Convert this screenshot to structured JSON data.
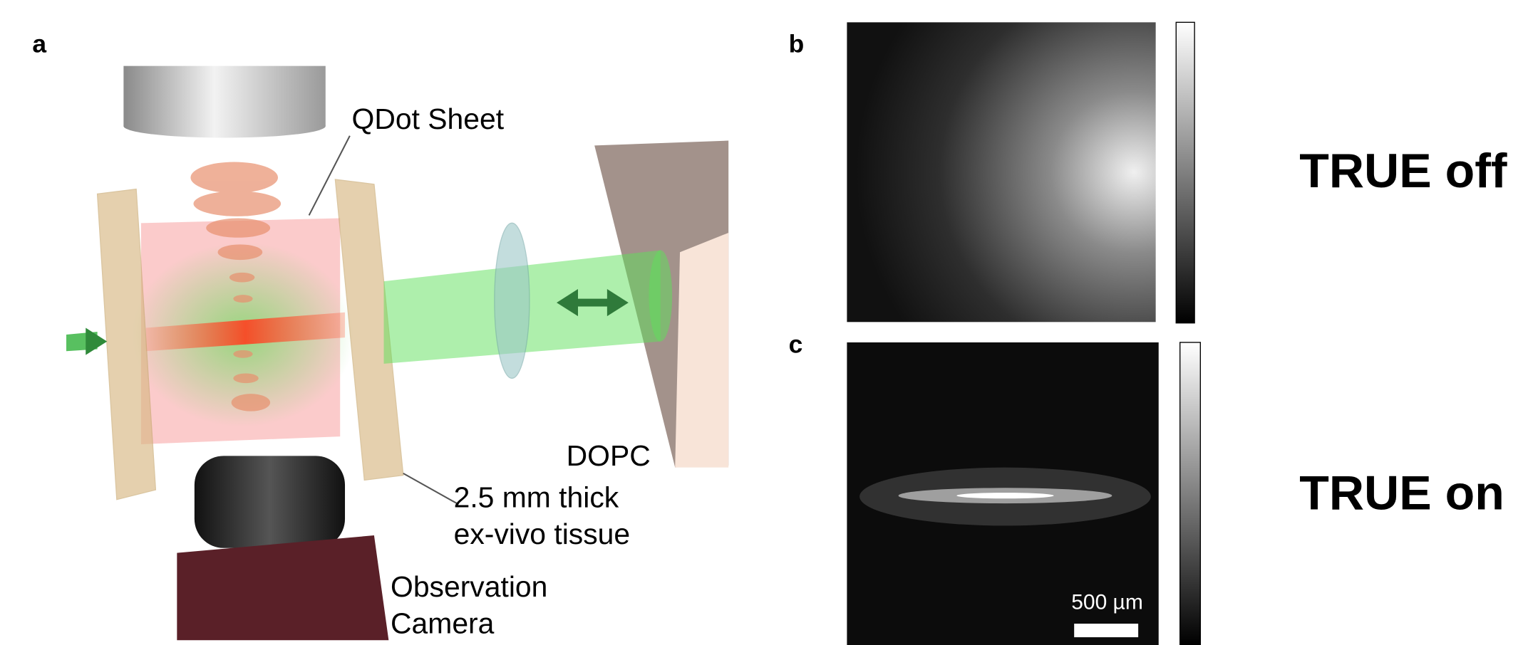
{
  "panels": {
    "a": {
      "label": "a",
      "qdot_sheet": "QDot Sheet",
      "dopc": "DOPC",
      "tissue_line1": "2.5 mm thick",
      "tissue_line2": "ex-vivo tissue",
      "camera_line1": "Observation",
      "camera_line2": "Camera"
    },
    "b": {
      "label": "b",
      "caption": "TRUE off"
    },
    "c": {
      "label": "c",
      "caption": "TRUE on",
      "scale_bar": "500 µm"
    }
  }
}
